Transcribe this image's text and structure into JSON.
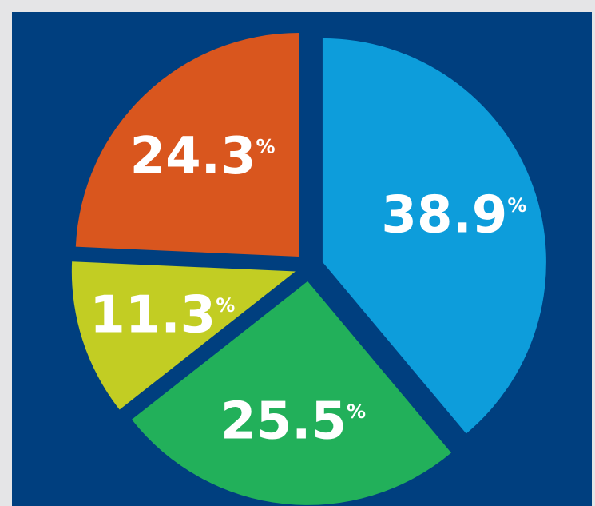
{
  "chart_data": {
    "type": "pie",
    "slices": [
      {
        "label": "38.9",
        "value": 38.9,
        "color": "#0d9ddb",
        "value_text": "38.9%"
      },
      {
        "label": "25.5",
        "value": 25.5,
        "color": "#22b05a",
        "value_text": "25.5%"
      },
      {
        "label": "11.3",
        "value": 11.3,
        "color": "#c2cd23",
        "value_text": "11.3%"
      },
      {
        "label": "24.3",
        "value": 24.3,
        "color": "#d9561e",
        "value_text": "24.3%"
      }
    ],
    "unit": "%",
    "start_angle_deg": 0,
    "direction": "clockwise",
    "exploded": true,
    "legend": "none",
    "background_color": "#003f7f"
  }
}
